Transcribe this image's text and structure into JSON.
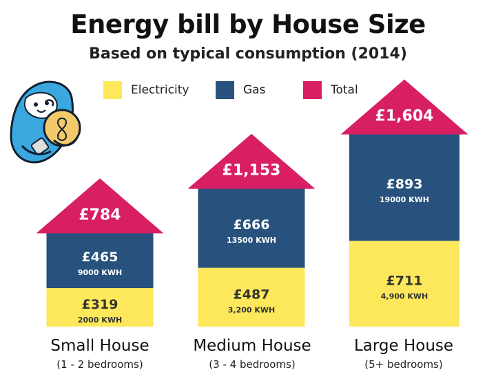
{
  "title": "Energy bill by House Size",
  "subtitle": "Based on typical consumption (2014)",
  "colors": {
    "electricity": "#fce85a",
    "gas": "#28527d",
    "total": "#d91f63",
    "mascot_body": "#3aa7de",
    "bulb": "#f3c96a"
  },
  "legend": [
    {
      "key": "electricity",
      "label": "Electricity",
      "color": "#fce85a"
    },
    {
      "key": "gas",
      "label": "Gas",
      "color": "#28527d"
    },
    {
      "key": "total",
      "label": "Total",
      "color": "#d91f63"
    }
  ],
  "mascot": {
    "icon": "sloth-hugging-lightbulb-icon"
  },
  "chart_data": {
    "type": "bar",
    "stacked": true,
    "title": "Energy bill by House Size",
    "subtitle": "Based on typical consumption (2014)",
    "categories": [
      "Small House",
      "Medium House",
      "Large House"
    ],
    "category_notes": [
      "(1 - 2 bedrooms)",
      "(3 - 4 bedrooms)",
      "(5+ bedrooms)"
    ],
    "series": [
      {
        "name": "Electricity",
        "values": [
          319,
          487,
          711
        ],
        "labels": [
          "£319",
          "£487",
          "£711"
        ],
        "usage": [
          "2000 KWH",
          "3,200 KWH",
          "4,900 KWH"
        ]
      },
      {
        "name": "Gas",
        "values": [
          465,
          666,
          893
        ],
        "labels": [
          "£465",
          "£666",
          "£893"
        ],
        "usage": [
          "9000 KWH",
          "13500 KWH",
          "19000 KWH"
        ]
      }
    ],
    "totals": {
      "name": "Total",
      "values": [
        784,
        1153,
        1604
      ],
      "labels": [
        "£784",
        "£1,153",
        "£1,604"
      ]
    },
    "legend_position": "top",
    "grid": false
  }
}
